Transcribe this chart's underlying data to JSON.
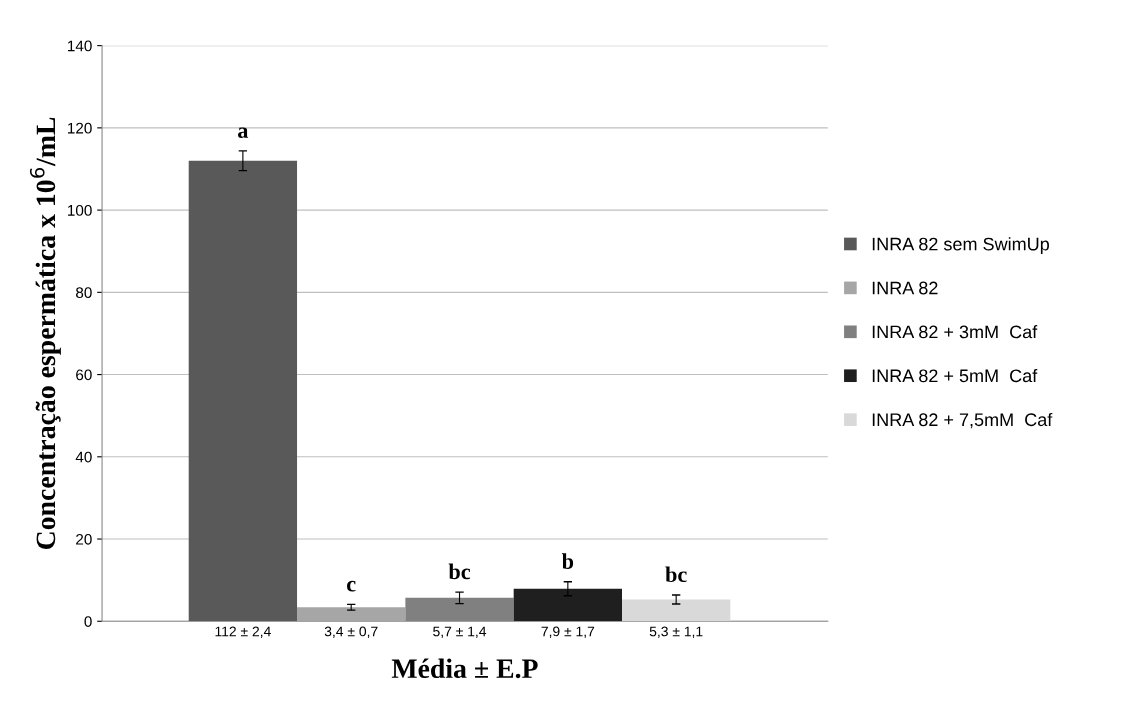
{
  "chart_data": {
    "type": "bar",
    "xlabel": "Média ± E.P",
    "ylabel": "Concentração espermática x 10$^{6}$/mL",
    "categories": [
      "112 ± 2,4",
      "3,4 ± 0,7",
      "5,7 ± 1,4",
      "7,9 ± 1,7",
      "5,3 ± 1,1"
    ],
    "series": [
      {
        "name": "INRA 82 sem SwimUp",
        "color": "#595959",
        "values": [
          112,
          null,
          null,
          null,
          null
        ],
        "errors": [
          2.4,
          null,
          null,
          null,
          null
        ]
      },
      {
        "name": "INRA 82",
        "color": "#a6a6a6",
        "values": [
          null,
          3.4,
          null,
          null,
          null
        ],
        "errors": [
          null,
          0.7,
          null,
          null,
          null
        ]
      },
      {
        "name": "INRA 82 + 3mM  Caf",
        "color": "#808080",
        "values": [
          null,
          null,
          5.7,
          null,
          null
        ],
        "errors": [
          null,
          null,
          1.4,
          null,
          null
        ]
      },
      {
        "name": "INRA 82 + 5mM  Caf",
        "color": "#1f1f1f",
        "values": [
          null,
          null,
          null,
          7.9,
          null
        ],
        "errors": [
          null,
          null,
          null,
          1.7,
          null
        ]
      },
      {
        "name": "INRA 82 + 7,5mM  Caf",
        "color": "#d9d9d9",
        "values": [
          null,
          null,
          null,
          null,
          5.3
        ],
        "errors": [
          null,
          null,
          null,
          null,
          1.1
        ]
      }
    ],
    "ylim": [
      0,
      140
    ],
    "yticks": [
      0,
      20,
      40,
      60,
      80,
      100,
      120,
      140
    ],
    "grid": "y",
    "legend": "right",
    "annotations": [
      {
        "text": "a",
        "x": "112 ± 2,4",
        "y": 112
      },
      {
        "text": "c",
        "x": "3,4 ± 0,7",
        "y": 3.4
      },
      {
        "text": "bc",
        "x": "5,7 ± 1,4",
        "y": 5.7
      },
      {
        "text": "b",
        "x": "7,9 ± 1,7",
        "y": 7.9
      },
      {
        "text": "bc",
        "x": "5,3 ± 1,1",
        "y": 5.3
      }
    ]
  }
}
